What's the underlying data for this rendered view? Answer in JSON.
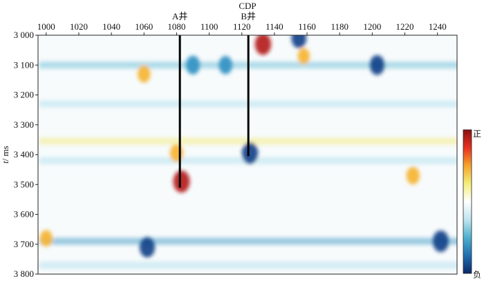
{
  "chart_data": {
    "type": "heatmap",
    "title": "",
    "x_axis": {
      "label": "CDP",
      "range": [
        995,
        1252
      ],
      "ticks": [
        1000,
        1020,
        1040,
        1060,
        1080,
        1100,
        1120,
        1140,
        1160,
        1180,
        1200,
        1220,
        1240
      ],
      "tick_labels": [
        "1000",
        "1020",
        "1040",
        "1060",
        "1080",
        "1100",
        "1120",
        "1140",
        "1160",
        "1180",
        "1200",
        "1220",
        "1240"
      ],
      "position": "top"
    },
    "y_axis": {
      "label_italic": "t",
      "label_unit": "/ ms",
      "range": [
        3000,
        3800
      ],
      "ticks": [
        3000,
        3100,
        3200,
        3300,
        3400,
        3500,
        3600,
        3700,
        3800
      ],
      "tick_labels": [
        "3 000",
        "3 100",
        "3 200",
        "3 300",
        "3 400",
        "3 500",
        "3 600",
        "3 700",
        "3 800"
      ]
    },
    "colorbar": {
      "top_label": "正",
      "bottom_label": "负",
      "colors": [
        "#8a0f12",
        "#e8311f",
        "#f6a52a",
        "#f4ee7a",
        "#ffffff",
        "#bfe5ef",
        "#4fb0cf",
        "#1f6fb0",
        "#0b2a6a"
      ]
    },
    "wells": [
      {
        "name": "A井",
        "cdp": 1082,
        "t_end": 3510
      },
      {
        "name": "B井",
        "cdp": 1124,
        "t_end": 3405
      }
    ],
    "bands": [
      {
        "t": 3100,
        "cdp_range": [
          1000,
          1250
        ],
        "polarity": -0.45
      },
      {
        "t": 3230,
        "cdp_range": [
          1000,
          1250
        ],
        "polarity": -0.35
      },
      {
        "t": 3355,
        "cdp_range": [
          1000,
          1250
        ],
        "polarity": 0.3
      },
      {
        "t": 3420,
        "cdp_range": [
          1000,
          1250
        ],
        "polarity": -0.3
      },
      {
        "t": 3690,
        "cdp_range": [
          1000,
          1250
        ],
        "polarity": -0.6
      },
      {
        "t": 3770,
        "cdp_range": [
          1000,
          1250
        ],
        "polarity": -0.35
      }
    ],
    "anomalies": [
      {
        "cdp": 1083,
        "t": 3490,
        "amplitude": 1.0
      },
      {
        "cdp": 1125,
        "t": 3395,
        "amplitude": -0.95
      },
      {
        "cdp": 1133,
        "t": 3030,
        "amplitude": 0.95
      },
      {
        "cdp": 1242,
        "t": 3690,
        "amplitude": -0.95
      },
      {
        "cdp": 1062,
        "t": 3710,
        "amplitude": -0.85
      },
      {
        "cdp": 1203,
        "t": 3100,
        "amplitude": -0.8
      },
      {
        "cdp": 1080,
        "t": 3395,
        "amplitude": 0.6
      },
      {
        "cdp": 1000,
        "t": 3680,
        "amplitude": 0.5
      },
      {
        "cdp": 1225,
        "t": 3470,
        "amplitude": 0.6
      },
      {
        "cdp": 1155,
        "t": 3010,
        "amplitude": -0.8
      },
      {
        "cdp": 1158,
        "t": 3070,
        "amplitude": 0.45
      },
      {
        "cdp": 1090,
        "t": 3100,
        "amplitude": -0.7
      },
      {
        "cdp": 1110,
        "t": 3100,
        "amplitude": -0.65
      },
      {
        "cdp": 1060,
        "t": 3130,
        "amplitude": 0.55
      }
    ]
  }
}
